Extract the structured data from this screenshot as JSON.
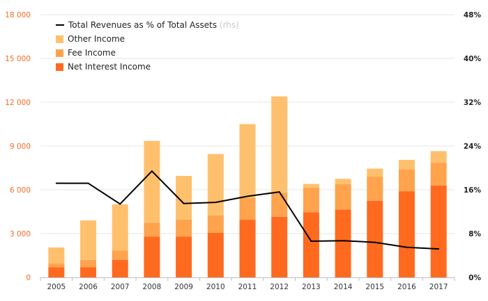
{
  "chart_data": {
    "type": "bar",
    "categories": [
      "2005",
      "2006",
      "2007",
      "2008",
      "2009",
      "2010",
      "2011",
      "2012",
      "2013",
      "2014",
      "2015",
      "2016",
      "2017"
    ],
    "stacked": true,
    "series": [
      {
        "name": "Net Interest Income",
        "color": "#ff6a1f",
        "values": [
          700,
          700,
          1200,
          2800,
          2800,
          3050,
          3950,
          4150,
          4450,
          4650,
          5250,
          5900,
          6300
        ]
      },
      {
        "name": "Fee Income",
        "color": "#ffa34d",
        "values": [
          250,
          500,
          650,
          950,
          1150,
          1200,
          1500,
          1650,
          1700,
          1750,
          1650,
          1500,
          1550
        ]
      },
      {
        "name": "Other Income",
        "color": "#ffc06d",
        "values": [
          1100,
          2700,
          3150,
          5600,
          3000,
          4200,
          5050,
          6600,
          250,
          350,
          550,
          650,
          800
        ]
      }
    ],
    "line_series": {
      "name": "Total Revenues as % of Total Assets",
      "name_suffix": "(rhs)",
      "axis": "right",
      "color": "#000000",
      "values": [
        17.2,
        17.2,
        13.4,
        19.4,
        13.5,
        13.7,
        14.8,
        15.6,
        6.6,
        6.7,
        6.4,
        5.5,
        5.2
      ]
    },
    "y_left": {
      "ylim": [
        0,
        18000
      ],
      "ticks": [
        0,
        3000,
        6000,
        9000,
        12000,
        15000,
        18000
      ],
      "tick_labels": [
        "0",
        "3 000",
        "6 000",
        "9 000",
        "12 000",
        "15 000",
        "18 000"
      ],
      "tick_color": "#f26b21"
    },
    "y_right": {
      "ylim": [
        0,
        48
      ],
      "ticks": [
        0,
        8,
        16,
        24,
        32,
        40,
        48
      ],
      "tick_labels": [
        "0%",
        "8%",
        "16%",
        "24%",
        "32%",
        "40%",
        "48%"
      ],
      "tick_color": "#222222"
    },
    "grid": true,
    "legend_position": "top-left"
  }
}
